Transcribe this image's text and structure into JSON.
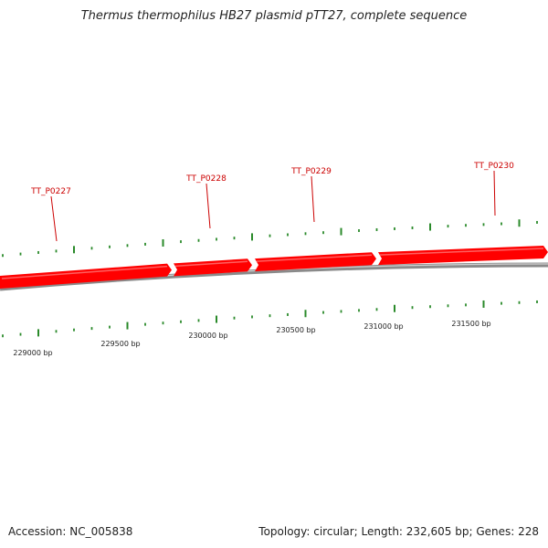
{
  "title": "Thermus thermophilus HB27 plasmid pTT27, complete sequence",
  "footer": {
    "accession": "Accession: NC_005838",
    "summary": "Topology: circular; Length: 232,605 bp; Genes: 228"
  },
  "colors": {
    "gene": "#ff0000",
    "gene_label": "#cc0000",
    "backbone": "#8a8a8a",
    "tick": "#2a8a2a"
  },
  "genes": [
    {
      "name": "TT_P0227"
    },
    {
      "name": "TT_P0228"
    },
    {
      "name": "TT_P0229"
    },
    {
      "name": "TT_P0230"
    }
  ],
  "scale_labels": [
    "229000 bp",
    "229500 bp",
    "230000 bp",
    "230500 bp",
    "231000 bp",
    "231500 bp"
  ]
}
